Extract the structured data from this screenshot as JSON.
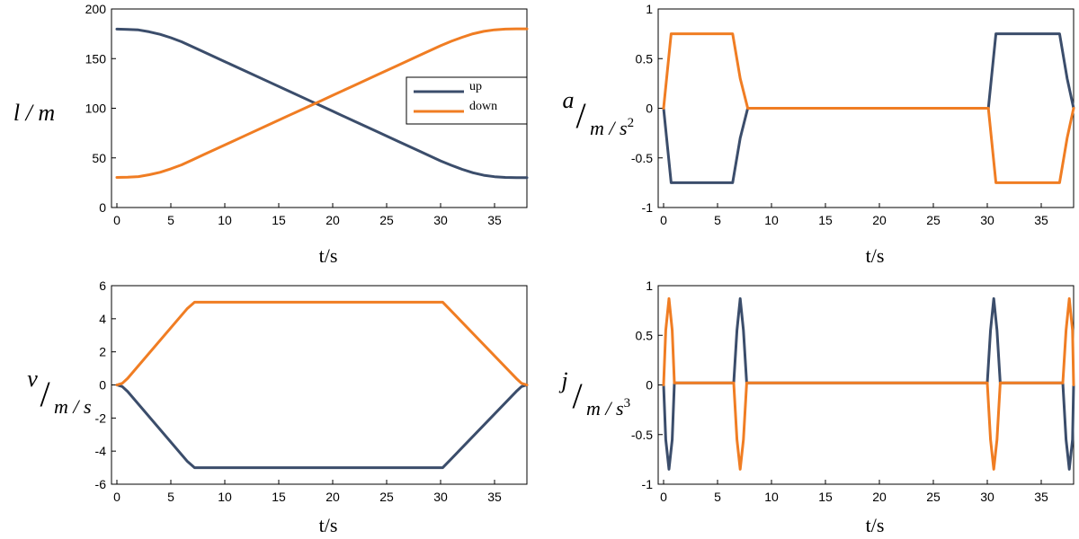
{
  "colors": {
    "up": "#3b4d6b",
    "down": "#f07d23"
  },
  "chart_data": [
    {
      "type": "line",
      "id": "length",
      "ylabel": {
        "main": "l / m"
      },
      "xlabel": "t/s",
      "xlim": [
        -0.5,
        38
      ],
      "ylim": [
        0,
        200
      ],
      "xticks": [
        0,
        5,
        10,
        15,
        20,
        25,
        30,
        35
      ],
      "yticks": [
        0,
        50,
        100,
        150,
        200
      ],
      "ytick_labels": [
        "0",
        "50",
        "100",
        "150",
        "200"
      ],
      "legend": {
        "position": "center-right",
        "entries": [
          "up",
          "down"
        ]
      },
      "x": [
        0,
        1,
        2,
        3,
        4,
        5,
        6,
        7,
        8,
        10,
        12,
        14,
        16,
        18,
        19,
        20,
        22,
        24,
        26,
        28,
        30,
        31,
        32,
        33,
        34,
        35,
        36,
        37,
        38
      ],
      "series": [
        {
          "name": "up",
          "color_key": "up",
          "values": [
            179.7,
            179.5,
            178.9,
            177.0,
            174.5,
            171.0,
            167.0,
            162.0,
            157.0,
            147.0,
            137.0,
            127.0,
            117.0,
            107.0,
            102.0,
            97.0,
            87.0,
            77.0,
            67.0,
            57.0,
            47.0,
            42.5,
            38.5,
            35.0,
            32.5,
            31.0,
            30.3,
            30.0,
            30.0
          ]
        },
        {
          "name": "down",
          "color_key": "down",
          "values": [
            30.3,
            30.5,
            31.1,
            33.0,
            35.5,
            39.0,
            43.0,
            48.0,
            53.0,
            63.0,
            73.0,
            83.0,
            93.0,
            103.0,
            108.0,
            113.0,
            123.0,
            133.0,
            143.0,
            153.0,
            163.0,
            167.5,
            171.5,
            175.0,
            177.5,
            179.0,
            179.7,
            180.0,
            180.0
          ]
        }
      ]
    },
    {
      "type": "line",
      "id": "acceleration",
      "ylabel": {
        "top": "a",
        "bottom": "m / s",
        "sup": "2"
      },
      "xlabel": "t/s",
      "xlim": [
        -0.5,
        38
      ],
      "ylim": [
        -1,
        1
      ],
      "xticks": [
        0,
        5,
        10,
        15,
        20,
        25,
        30,
        35
      ],
      "yticks": [
        -1,
        -0.5,
        0,
        0.5,
        1
      ],
      "ytick_labels": [
        "-1",
        "-0.5",
        "0",
        "0.5",
        "1"
      ],
      "x": [
        0,
        0.7,
        6.4,
        7.1,
        7.8,
        30.1,
        30.8,
        36.7,
        37.4,
        38
      ],
      "series": [
        {
          "name": "up",
          "color_key": "up",
          "values": [
            0,
            -0.75,
            -0.75,
            -0.3,
            0,
            0,
            0.75,
            0.75,
            0.3,
            0
          ]
        },
        {
          "name": "down",
          "color_key": "down",
          "values": [
            0,
            0.75,
            0.75,
            0.3,
            0,
            0,
            -0.75,
            -0.75,
            -0.3,
            0
          ]
        }
      ]
    },
    {
      "type": "line",
      "id": "velocity",
      "ylabel": {
        "top": "v",
        "bottom": "m / s"
      },
      "xlabel": "t/s",
      "xlim": [
        -0.5,
        38
      ],
      "ylim": [
        -6,
        6
      ],
      "xticks": [
        0,
        5,
        10,
        15,
        20,
        25,
        30,
        35
      ],
      "yticks": [
        -6,
        -4,
        -2,
        0,
        2,
        4,
        6
      ],
      "ytick_labels": [
        "-6",
        "-4",
        "-2",
        "0",
        "2",
        "4",
        "6"
      ],
      "x": [
        0,
        0.5,
        1,
        6.5,
        7.2,
        30.2,
        30.8,
        37,
        37.5,
        38
      ],
      "series": [
        {
          "name": "up",
          "color_key": "up",
          "values": [
            0,
            -0.1,
            -0.4,
            -4.6,
            -5.0,
            -5.0,
            -4.6,
            -0.4,
            -0.1,
            0
          ]
        },
        {
          "name": "down",
          "color_key": "down",
          "values": [
            0,
            0.1,
            0.4,
            4.6,
            5.0,
            5.0,
            4.6,
            0.4,
            0.1,
            0
          ]
        }
      ]
    },
    {
      "type": "line",
      "id": "jerk",
      "ylabel": {
        "top": "j",
        "bottom": "m / s",
        "sup": "3"
      },
      "xlabel": "t/s",
      "xlim": [
        -0.5,
        38
      ],
      "ylim": [
        -1,
        1
      ],
      "xticks": [
        0,
        5,
        10,
        15,
        20,
        25,
        30,
        35
      ],
      "yticks": [
        -1,
        -0.5,
        0,
        0.5,
        1
      ],
      "ytick_labels": [
        "-1",
        "-0.5",
        "0",
        "0.5",
        "1"
      ],
      "x": [
        0,
        0.2,
        0.5,
        0.8,
        1.0,
        6.5,
        6.8,
        7.1,
        7.4,
        7.7,
        30.0,
        30.3,
        30.6,
        30.9,
        31.2,
        37.0,
        37.3,
        37.6,
        37.9,
        38.0
      ],
      "series": [
        {
          "name": "up",
          "color_key": "up",
          "values": [
            0,
            -0.55,
            -0.85,
            -0.55,
            0.02,
            0.02,
            0.55,
            0.87,
            0.55,
            0.02,
            0.02,
            0.55,
            0.87,
            0.55,
            0.02,
            0.02,
            -0.55,
            -0.85,
            -0.55,
            0
          ]
        },
        {
          "name": "down",
          "color_key": "down",
          "values": [
            0,
            0.55,
            0.87,
            0.55,
            0.02,
            0.02,
            -0.55,
            -0.85,
            -0.55,
            0.02,
            0.02,
            -0.55,
            -0.85,
            -0.55,
            0.02,
            0.02,
            0.55,
            0.87,
            0.55,
            0
          ]
        }
      ]
    }
  ]
}
